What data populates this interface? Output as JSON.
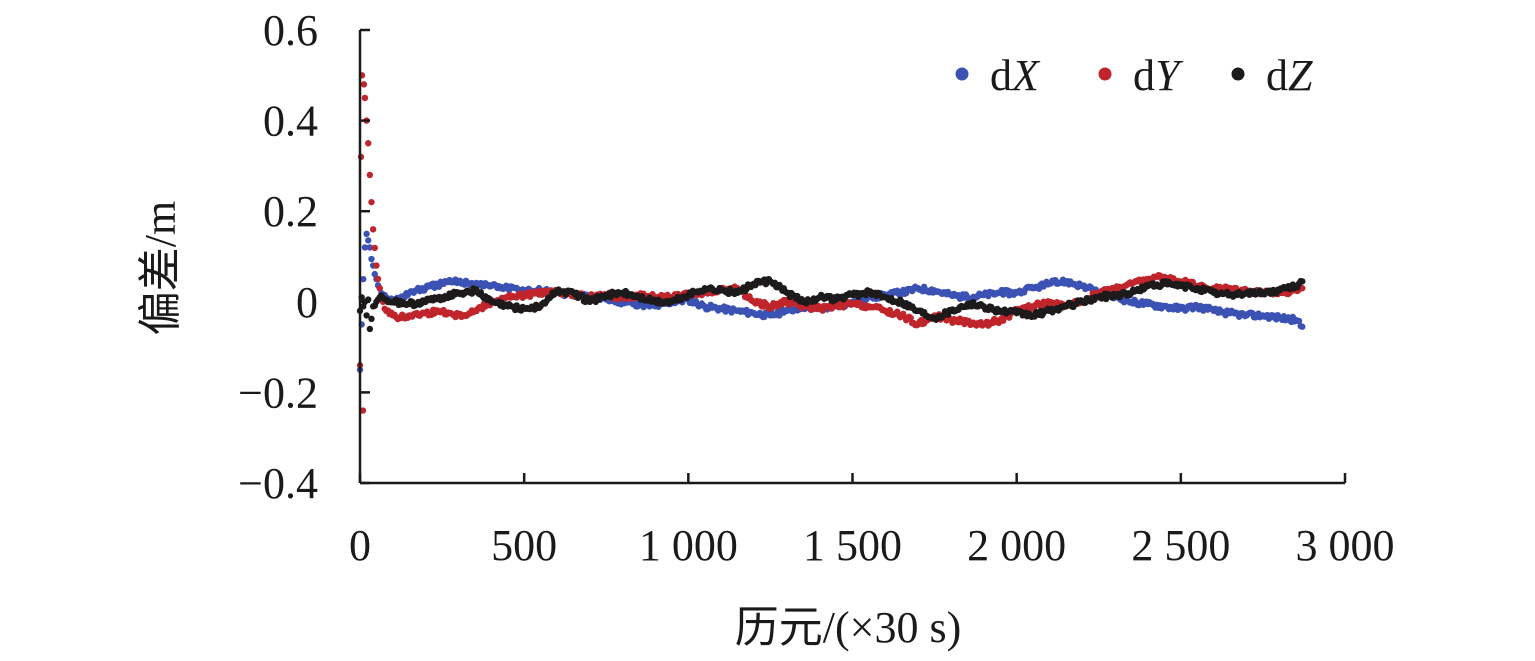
{
  "chart_data": {
    "type": "scatter",
    "title": "",
    "xlabel": "历元/(×30 s)",
    "ylabel": "偏差/m",
    "xlim": [
      0,
      3000
    ],
    "ylim": [
      -0.4,
      0.6
    ],
    "x_ticks": [
      0,
      500,
      1000,
      1500,
      2000,
      2500,
      3000
    ],
    "x_tick_labels": [
      "0",
      "500",
      "1 000",
      "1 500",
      "2 000",
      "2 500",
      "3 000"
    ],
    "y_ticks": [
      0.6,
      0.4,
      0.2,
      0,
      -0.2,
      -0.4
    ],
    "y_tick_labels": [
      "0.6",
      "0.4",
      "0.2",
      "0",
      "−0.2",
      "−0.4"
    ],
    "grid": false,
    "legend_position": "top-right",
    "series": [
      {
        "name": "dX",
        "legend_base": "d",
        "legend_italic": "X",
        "color": "#3b52b4",
        "x": [
          0,
          5,
          10,
          15,
          20,
          30,
          40,
          50,
          60,
          80,
          100,
          150,
          200,
          250,
          300,
          350,
          400,
          450,
          500,
          550,
          600,
          650,
          700,
          750,
          800,
          850,
          900,
          950,
          1000,
          1050,
          1100,
          1150,
          1200,
          1250,
          1300,
          1350,
          1400,
          1450,
          1500,
          1550,
          1600,
          1650,
          1700,
          1750,
          1800,
          1850,
          1900,
          1950,
          2000,
          2050,
          2100,
          2150,
          2200,
          2250,
          2300,
          2350,
          2400,
          2450,
          2500,
          2550,
          2600,
          2650,
          2700,
          2750,
          2800,
          2850,
          2870
        ],
        "values": [
          -0.15,
          -0.05,
          0.05,
          0.12,
          0.15,
          0.12,
          0.08,
          0.05,
          0.03,
          0.01,
          0.0,
          0.02,
          0.03,
          0.04,
          0.045,
          0.04,
          0.035,
          0.03,
          0.025,
          0.025,
          0.02,
          0.015,
          0.01,
          0.005,
          0.0,
          -0.005,
          -0.01,
          0.0,
          0.005,
          -0.01,
          -0.015,
          -0.02,
          -0.025,
          -0.03,
          -0.02,
          -0.01,
          -0.015,
          -0.01,
          0.0,
          0.01,
          0.015,
          0.02,
          0.03,
          0.025,
          0.015,
          0.01,
          0.015,
          0.02,
          0.02,
          0.03,
          0.04,
          0.045,
          0.035,
          0.02,
          0.01,
          0.0,
          -0.005,
          -0.01,
          -0.015,
          -0.01,
          -0.02,
          -0.025,
          -0.03,
          -0.03,
          -0.035,
          -0.04,
          -0.055
        ]
      },
      {
        "name": "dY",
        "legend_base": "d",
        "legend_italic": "Y",
        "color": "#c0252b",
        "x": [
          0,
          3,
          6,
          9,
          12,
          15,
          20,
          25,
          30,
          35,
          40,
          50,
          60,
          70,
          80,
          100,
          120,
          150,
          200,
          250,
          300,
          350,
          400,
          450,
          500,
          550,
          600,
          650,
          700,
          750,
          800,
          850,
          900,
          950,
          1000,
          1050,
          1100,
          1150,
          1200,
          1250,
          1300,
          1350,
          1400,
          1450,
          1500,
          1550,
          1600,
          1650,
          1700,
          1750,
          1800,
          1850,
          1900,
          1950,
          2000,
          2050,
          2100,
          2150,
          2200,
          2250,
          2300,
          2350,
          2400,
          2450,
          2500,
          2550,
          2600,
          2650,
          2700,
          2750,
          2800,
          2850,
          2870
        ],
        "values": [
          -0.14,
          0.32,
          0.5,
          -0.24,
          0.48,
          0.45,
          0.4,
          0.35,
          0.28,
          0.22,
          0.16,
          0.08,
          0.03,
          0.0,
          -0.02,
          -0.03,
          -0.035,
          -0.03,
          -0.025,
          -0.02,
          -0.03,
          -0.02,
          0.0,
          0.01,
          0.015,
          0.02,
          0.02,
          0.015,
          0.01,
          0.015,
          0.01,
          0.015,
          0.01,
          0.01,
          0.015,
          0.02,
          0.025,
          0.03,
          0.0,
          -0.01,
          0.0,
          -0.01,
          -0.015,
          -0.01,
          -0.005,
          -0.01,
          -0.02,
          -0.03,
          -0.05,
          -0.03,
          -0.04,
          -0.045,
          -0.05,
          -0.04,
          -0.02,
          -0.01,
          0.0,
          -0.01,
          0.0,
          0.02,
          0.03,
          0.04,
          0.05,
          0.055,
          0.045,
          0.035,
          0.03,
          0.03,
          0.025,
          0.02,
          0.02,
          0.025,
          0.03
        ]
      },
      {
        "name": "dZ",
        "legend_base": "d",
        "legend_italic": "Z",
        "color": "#1c1a1b",
        "x": [
          0,
          5,
          10,
          15,
          20,
          25,
          30,
          40,
          50,
          60,
          80,
          100,
          150,
          200,
          250,
          300,
          350,
          400,
          450,
          500,
          550,
          600,
          650,
          700,
          750,
          800,
          850,
          900,
          950,
          1000,
          1050,
          1100,
          1150,
          1200,
          1250,
          1300,
          1350,
          1400,
          1450,
          1500,
          1550,
          1600,
          1650,
          1700,
          1750,
          1800,
          1850,
          1900,
          1950,
          2000,
          2050,
          2100,
          2150,
          2200,
          2250,
          2300,
          2350,
          2400,
          2450,
          2500,
          2550,
          2600,
          2650,
          2700,
          2750,
          2800,
          2850,
          2870
        ],
        "values": [
          -0.02,
          0.01,
          -0.01,
          0.0,
          -0.03,
          0.005,
          -0.06,
          -0.01,
          0.0,
          0.01,
          0.005,
          0.0,
          -0.005,
          0.0,
          0.01,
          0.02,
          0.025,
          0.0,
          -0.01,
          -0.015,
          -0.01,
          0.025,
          0.02,
          0.0,
          0.015,
          0.02,
          0.01,
          0.0,
          0.0,
          0.015,
          0.03,
          0.025,
          0.02,
          0.04,
          0.045,
          0.02,
          0.0,
          0.01,
          0.005,
          0.015,
          0.02,
          0.01,
          0.0,
          -0.02,
          -0.035,
          -0.02,
          -0.005,
          -0.01,
          -0.02,
          -0.025,
          -0.03,
          -0.02,
          -0.01,
          0.0,
          0.01,
          0.015,
          0.02,
          0.035,
          0.04,
          0.035,
          0.03,
          0.02,
          0.015,
          0.02,
          0.02,
          0.025,
          0.035,
          0.045
        ]
      }
    ]
  }
}
